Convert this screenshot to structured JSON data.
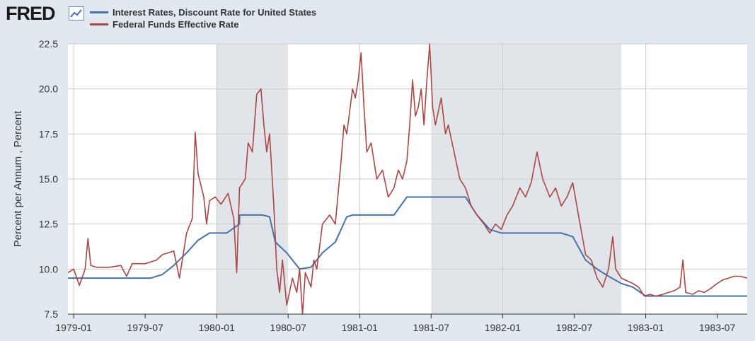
{
  "header": {
    "logo_text": "FRED",
    "logo_icon": "chart-line-icon"
  },
  "colors": {
    "discount": "#4572a7",
    "fedfunds": "#aa4643",
    "recession": "#e1e5ea",
    "grid": "#cccccc",
    "background": "#e1e9f0"
  },
  "chart_data": {
    "type": "line",
    "ylabel": "Percent per Annum , Percent",
    "ylim": [
      7.5,
      22.5
    ],
    "yticks": [
      "7.5",
      "10.0",
      "12.5",
      "15.0",
      "17.5",
      "20.0",
      "22.5"
    ],
    "ytick_values": [
      7.5,
      10.0,
      12.5,
      15.0,
      17.5,
      20.0,
      22.5
    ],
    "xlim": [
      1978.96,
      1983.71
    ],
    "xticks": [
      "1979-01",
      "1979-07",
      "1980-01",
      "1980-07",
      "1981-01",
      "1981-07",
      "1982-01",
      "1982-07",
      "1983-01",
      "1983-07"
    ],
    "xtick_values": [
      1979.0,
      1979.5,
      1980.0,
      1980.5,
      1981.0,
      1981.5,
      1982.0,
      1982.5,
      1983.0,
      1983.5
    ],
    "recessions": [
      [
        1980.0,
        1980.5
      ],
      [
        1981.5,
        1982.83
      ]
    ],
    "series": [
      {
        "name": "Interest Rates, Discount Rate for United States",
        "color": "#4572a7",
        "points": [
          [
            1978.96,
            9.5
          ],
          [
            1979.54,
            9.5
          ],
          [
            1979.62,
            9.7
          ],
          [
            1979.7,
            10.2
          ],
          [
            1979.79,
            10.9
          ],
          [
            1979.87,
            11.6
          ],
          [
            1979.95,
            12.0
          ],
          [
            1980.07,
            12.0
          ],
          [
            1980.16,
            12.5
          ],
          [
            1980.16,
            13.0
          ],
          [
            1980.32,
            13.0
          ],
          [
            1980.37,
            12.9
          ],
          [
            1980.41,
            11.5
          ],
          [
            1980.49,
            10.9
          ],
          [
            1980.58,
            10.0
          ],
          [
            1980.66,
            10.1
          ],
          [
            1980.74,
            10.9
          ],
          [
            1980.83,
            11.5
          ],
          [
            1980.91,
            12.9
          ],
          [
            1980.95,
            13.0
          ],
          [
            1981.24,
            13.0
          ],
          [
            1981.33,
            14.0
          ],
          [
            1981.74,
            14.0
          ],
          [
            1981.82,
            13.0
          ],
          [
            1981.91,
            12.2
          ],
          [
            1981.99,
            12.0
          ],
          [
            1982.41,
            12.0
          ],
          [
            1982.49,
            11.8
          ],
          [
            1982.58,
            10.5
          ],
          [
            1982.66,
            10.0
          ],
          [
            1982.74,
            9.6
          ],
          [
            1982.83,
            9.2
          ],
          [
            1982.91,
            9.0
          ],
          [
            1983.0,
            8.5
          ],
          [
            1983.71,
            8.5
          ]
        ]
      },
      {
        "name": "Federal Funds Effective Rate",
        "color": "#aa4643",
        "points": [
          [
            1978.96,
            9.8
          ],
          [
            1979.0,
            10.0
          ],
          [
            1979.04,
            9.1
          ],
          [
            1979.08,
            10.0
          ],
          [
            1979.1,
            11.7
          ],
          [
            1979.12,
            10.2
          ],
          [
            1979.16,
            10.1
          ],
          [
            1979.25,
            10.1
          ],
          [
            1979.33,
            10.2
          ],
          [
            1979.37,
            9.6
          ],
          [
            1979.41,
            10.3
          ],
          [
            1979.5,
            10.3
          ],
          [
            1979.58,
            10.5
          ],
          [
            1979.62,
            10.8
          ],
          [
            1979.7,
            11.0
          ],
          [
            1979.74,
            9.5
          ],
          [
            1979.79,
            12.0
          ],
          [
            1979.83,
            12.8
          ],
          [
            1979.85,
            17.6
          ],
          [
            1979.87,
            15.3
          ],
          [
            1979.91,
            14.0
          ],
          [
            1979.93,
            12.5
          ],
          [
            1979.95,
            13.8
          ],
          [
            1979.99,
            14.0
          ],
          [
            1980.03,
            13.6
          ],
          [
            1980.08,
            14.2
          ],
          [
            1980.12,
            12.8
          ],
          [
            1980.14,
            9.8
          ],
          [
            1980.16,
            14.5
          ],
          [
            1980.2,
            15.0
          ],
          [
            1980.22,
            17.0
          ],
          [
            1980.25,
            16.5
          ],
          [
            1980.28,
            19.7
          ],
          [
            1980.31,
            20.0
          ],
          [
            1980.33,
            18.0
          ],
          [
            1980.35,
            16.5
          ],
          [
            1980.37,
            17.5
          ],
          [
            1980.4,
            13.5
          ],
          [
            1980.42,
            10.0
          ],
          [
            1980.44,
            8.7
          ],
          [
            1980.46,
            10.5
          ],
          [
            1980.49,
            8.0
          ],
          [
            1980.53,
            9.5
          ],
          [
            1980.56,
            8.7
          ],
          [
            1980.58,
            10.0
          ],
          [
            1980.6,
            7.5
          ],
          [
            1980.62,
            9.8
          ],
          [
            1980.66,
            9.0
          ],
          [
            1980.68,
            10.5
          ],
          [
            1980.7,
            10.0
          ],
          [
            1980.74,
            12.5
          ],
          [
            1980.79,
            13.0
          ],
          [
            1980.83,
            12.5
          ],
          [
            1980.87,
            16.0
          ],
          [
            1980.89,
            18.0
          ],
          [
            1980.91,
            17.5
          ],
          [
            1980.95,
            20.0
          ],
          [
            1980.97,
            19.5
          ],
          [
            1980.99,
            20.5
          ],
          [
            1981.01,
            22.0
          ],
          [
            1981.03,
            19.0
          ],
          [
            1981.05,
            16.5
          ],
          [
            1981.08,
            17.0
          ],
          [
            1981.12,
            15.0
          ],
          [
            1981.16,
            15.5
          ],
          [
            1981.2,
            14.0
          ],
          [
            1981.24,
            14.5
          ],
          [
            1981.27,
            15.5
          ],
          [
            1981.3,
            15.0
          ],
          [
            1981.33,
            16.0
          ],
          [
            1981.35,
            18.0
          ],
          [
            1981.37,
            20.5
          ],
          [
            1981.39,
            18.5
          ],
          [
            1981.41,
            19.0
          ],
          [
            1981.43,
            20.0
          ],
          [
            1981.45,
            18.0
          ],
          [
            1981.47,
            20.5
          ],
          [
            1981.49,
            22.5
          ],
          [
            1981.51,
            19.0
          ],
          [
            1981.53,
            18.0
          ],
          [
            1981.57,
            19.5
          ],
          [
            1981.6,
            17.5
          ],
          [
            1981.62,
            18.0
          ],
          [
            1981.66,
            16.5
          ],
          [
            1981.7,
            15.0
          ],
          [
            1981.74,
            14.5
          ],
          [
            1981.78,
            13.5
          ],
          [
            1981.82,
            13.0
          ],
          [
            1981.87,
            12.5
          ],
          [
            1981.91,
            12.0
          ],
          [
            1981.95,
            12.5
          ],
          [
            1981.99,
            12.2
          ],
          [
            1982.03,
            13.0
          ],
          [
            1982.07,
            13.5
          ],
          [
            1982.12,
            14.5
          ],
          [
            1982.16,
            14.0
          ],
          [
            1982.2,
            14.8
          ],
          [
            1982.24,
            16.5
          ],
          [
            1982.28,
            15.0
          ],
          [
            1982.33,
            14.0
          ],
          [
            1982.37,
            14.5
          ],
          [
            1982.41,
            13.5
          ],
          [
            1982.45,
            14.0
          ],
          [
            1982.49,
            14.8
          ],
          [
            1982.53,
            13.0
          ],
          [
            1982.58,
            10.8
          ],
          [
            1982.62,
            10.5
          ],
          [
            1982.66,
            9.5
          ],
          [
            1982.7,
            9.0
          ],
          [
            1982.74,
            10.0
          ],
          [
            1982.77,
            11.8
          ],
          [
            1982.79,
            10.0
          ],
          [
            1982.83,
            9.5
          ],
          [
            1982.91,
            9.2
          ],
          [
            1982.95,
            9.0
          ],
          [
            1982.99,
            8.5
          ],
          [
            1983.03,
            8.6
          ],
          [
            1983.07,
            8.5
          ],
          [
            1983.12,
            8.6
          ],
          [
            1983.16,
            8.7
          ],
          [
            1983.2,
            8.8
          ],
          [
            1983.24,
            9.0
          ],
          [
            1983.26,
            10.5
          ],
          [
            1983.28,
            8.7
          ],
          [
            1983.33,
            8.6
          ],
          [
            1983.37,
            8.8
          ],
          [
            1983.41,
            8.7
          ],
          [
            1983.45,
            8.9
          ],
          [
            1983.5,
            9.2
          ],
          [
            1983.54,
            9.4
          ],
          [
            1983.58,
            9.5
          ],
          [
            1983.62,
            9.6
          ],
          [
            1983.66,
            9.6
          ],
          [
            1983.71,
            9.5
          ]
        ]
      }
    ]
  }
}
